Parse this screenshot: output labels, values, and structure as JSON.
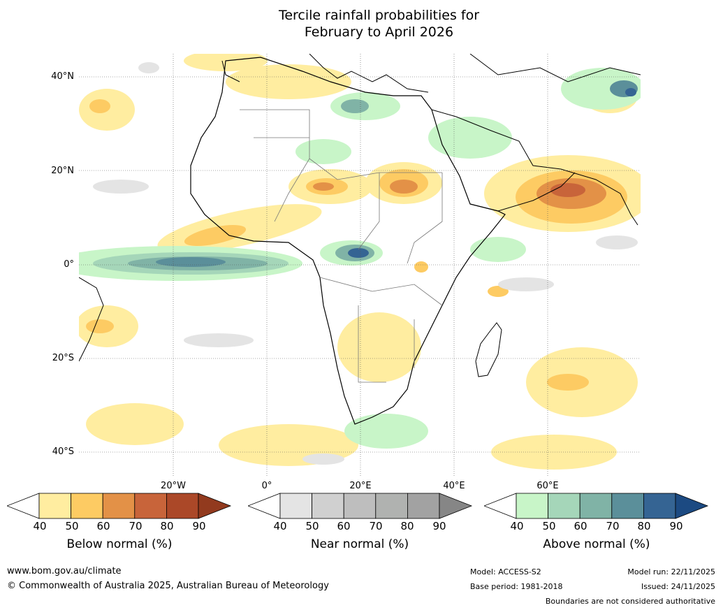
{
  "title": {
    "line1": "Tercile rainfall probabilities for",
    "line2": "February to April 2026"
  },
  "map": {
    "region": "Africa",
    "lat_labels": [
      "40°N",
      "20°N",
      "0°",
      "20°S",
      "40°S"
    ],
    "lon_labels": [
      "20°W",
      "0°",
      "20°E",
      "40°E",
      "60°E"
    ]
  },
  "colorbars": [
    {
      "title": "Below normal (%)",
      "ticks": [
        "40",
        "50",
        "60",
        "70",
        "80",
        "90"
      ],
      "colors": [
        "#ffeda0",
        "#fdcb63",
        "#e39147",
        "#c8643a",
        "#ab4828"
      ],
      "end_color": "#923a1e"
    },
    {
      "title": "Near normal (%)",
      "ticks": [
        "40",
        "50",
        "60",
        "70",
        "80",
        "90"
      ],
      "colors": [
        "#e4e4e4",
        "#d0d0d0",
        "#bebebe",
        "#b0b2b0",
        "#a2a2a2"
      ],
      "end_color": "#868686"
    },
    {
      "title": "Above normal (%)",
      "ticks": [
        "40",
        "50",
        "60",
        "70",
        "80",
        "90"
      ],
      "colors": [
        "#c8f5c8",
        "#a5d6b9",
        "#80b3a6",
        "#5b8f9a",
        "#356493"
      ],
      "end_color": "#1c4a82"
    }
  ],
  "footer": {
    "website": "www.bom.gov.au/climate",
    "copyright": "© Commonwealth of Australia 2025, Australian Bureau of Meteorology",
    "model": "Model: ACCESS-S2",
    "base_period": "Base period: 1981-2018",
    "model_run": "Model run: 22/11/2025",
    "issued": "Issued: 24/11/2025",
    "disclaimer": "Boundaries are not considered authoritative"
  }
}
